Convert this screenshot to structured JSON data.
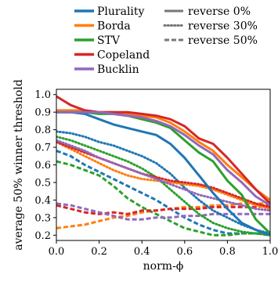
{
  "chart_data": {
    "type": "line",
    "title": "",
    "xlabel": "norm-ϕ",
    "ylabel": "average 50% winner threshold",
    "xlim": [
      0.0,
      1.0
    ],
    "ylim": [
      0.17,
      1.03
    ],
    "xticks": [
      "0.0",
      "0.2",
      "0.4",
      "0.6",
      "0.8",
      "1.0"
    ],
    "yticks": [
      "0.2",
      "0.3",
      "0.4",
      "0.5",
      "0.6",
      "0.7",
      "0.8",
      "0.9",
      "1.0"
    ],
    "grid": false,
    "legend_placement": "top",
    "x": [
      0.0,
      0.067,
      0.133,
      0.2,
      0.267,
      0.333,
      0.4,
      0.467,
      0.533,
      0.6,
      0.667,
      0.733,
      0.8,
      0.867,
      0.933,
      1.0
    ],
    "rules": [
      {
        "name": "Plurality",
        "color": "#1f77b4"
      },
      {
        "name": "Borda",
        "color": "#ff7f0e"
      },
      {
        "name": "STV",
        "color": "#2ca02c"
      },
      {
        "name": "Copeland",
        "color": "#d62728"
      },
      {
        "name": "Bucklin",
        "color": "#9467bd"
      }
    ],
    "styles": [
      {
        "name": "reverse 0%",
        "dash": "solid"
      },
      {
        "name": "reverse 30%",
        "dash": "dotted"
      },
      {
        "name": "reverse 50%",
        "dash": "dashed"
      }
    ],
    "series": [
      {
        "rule": "Plurality",
        "style": "reverse 0%",
        "values": [
          0.9,
          0.9,
          0.89,
          0.86,
          0.83,
          0.81,
          0.79,
          0.77,
          0.72,
          0.64,
          0.54,
          0.44,
          0.35,
          0.27,
          0.23,
          0.2
        ]
      },
      {
        "rule": "Borda",
        "style": "reverse 0%",
        "values": [
          0.91,
          0.91,
          0.91,
          0.9,
          0.9,
          0.89,
          0.88,
          0.87,
          0.84,
          0.79,
          0.73,
          0.68,
          0.6,
          0.53,
          0.46,
          0.4
        ]
      },
      {
        "rule": "STV",
        "style": "reverse 0%",
        "values": [
          0.9,
          0.9,
          0.9,
          0.89,
          0.89,
          0.88,
          0.86,
          0.84,
          0.81,
          0.74,
          0.67,
          0.62,
          0.51,
          0.43,
          0.29,
          0.21
        ]
      },
      {
        "rule": "Copeland",
        "style": "reverse 0%",
        "values": [
          0.99,
          0.94,
          0.91,
          0.9,
          0.9,
          0.9,
          0.89,
          0.88,
          0.86,
          0.82,
          0.75,
          0.72,
          0.64,
          0.55,
          0.46,
          0.38
        ]
      },
      {
        "rule": "Bucklin",
        "style": "reverse 0%",
        "values": [
          0.9,
          0.9,
          0.9,
          0.9,
          0.89,
          0.88,
          0.87,
          0.85,
          0.82,
          0.77,
          0.71,
          0.66,
          0.57,
          0.5,
          0.42,
          0.37
        ]
      },
      {
        "rule": "Plurality",
        "style": "reverse 30%",
        "values": [
          0.79,
          0.78,
          0.76,
          0.73,
          0.71,
          0.68,
          0.65,
          0.61,
          0.55,
          0.47,
          0.4,
          0.34,
          0.3,
          0.26,
          0.23,
          0.21
        ]
      },
      {
        "rule": "Borda",
        "style": "reverse 30%",
        "values": [
          0.73,
          0.69,
          0.65,
          0.61,
          0.57,
          0.54,
          0.52,
          0.51,
          0.5,
          0.49,
          0.48,
          0.46,
          0.43,
          0.4,
          0.37,
          0.35
        ]
      },
      {
        "rule": "STV",
        "style": "reverse 30%",
        "values": [
          0.76,
          0.74,
          0.71,
          0.68,
          0.65,
          0.62,
          0.58,
          0.53,
          0.46,
          0.39,
          0.32,
          0.27,
          0.24,
          0.22,
          0.21,
          0.2
        ]
      },
      {
        "rule": "Copeland",
        "style": "reverse 30%",
        "values": [
          0.73,
          0.7,
          0.67,
          0.64,
          0.61,
          0.58,
          0.55,
          0.53,
          0.51,
          0.5,
          0.49,
          0.47,
          0.44,
          0.41,
          0.38,
          0.36
        ]
      },
      {
        "rule": "Bucklin",
        "style": "reverse 30%",
        "values": [
          0.74,
          0.71,
          0.68,
          0.64,
          0.61,
          0.58,
          0.55,
          0.52,
          0.49,
          0.46,
          0.43,
          0.41,
          0.39,
          0.37,
          0.35,
          0.34
        ]
      },
      {
        "rule": "Plurality",
        "style": "reverse 50%",
        "values": [
          0.68,
          0.65,
          0.6,
          0.56,
          0.52,
          0.48,
          0.44,
          0.4,
          0.35,
          0.3,
          0.26,
          0.23,
          0.21,
          0.21,
          0.21,
          0.21
        ]
      },
      {
        "rule": "Borda",
        "style": "reverse 50%",
        "values": [
          0.24,
          0.25,
          0.26,
          0.28,
          0.3,
          0.31,
          0.33,
          0.34,
          0.35,
          0.36,
          0.36,
          0.37,
          0.37,
          0.38,
          0.38,
          0.38
        ]
      },
      {
        "rule": "STV",
        "style": "reverse 50%",
        "values": [
          0.62,
          0.6,
          0.57,
          0.54,
          0.48,
          0.41,
          0.36,
          0.32,
          0.28,
          0.24,
          0.22,
          0.2,
          0.2,
          0.21,
          0.21,
          0.2
        ]
      },
      {
        "rule": "Copeland",
        "style": "reverse 50%",
        "values": [
          0.37,
          0.35,
          0.33,
          0.32,
          0.33,
          0.32,
          0.34,
          0.34,
          0.35,
          0.35,
          0.35,
          0.36,
          0.36,
          0.36,
          0.36,
          0.37
        ]
      },
      {
        "rule": "Bucklin",
        "style": "reverse 50%",
        "values": [
          0.38,
          0.37,
          0.35,
          0.33,
          0.31,
          0.29,
          0.29,
          0.3,
          0.3,
          0.31,
          0.31,
          0.32,
          0.32,
          0.32,
          0.32,
          0.32
        ]
      }
    ]
  }
}
